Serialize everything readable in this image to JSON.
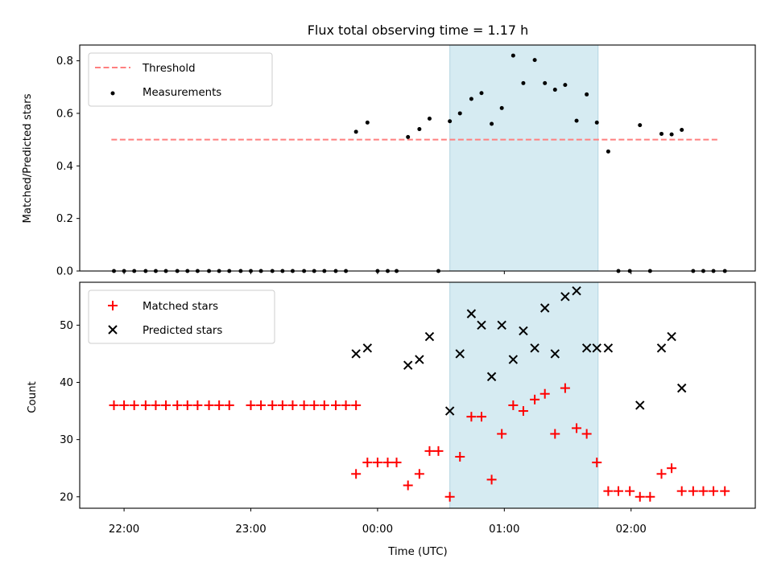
{
  "chart_data": [
    {
      "type": "scatter",
      "title": "Flux total observing time = 1.17 h",
      "xlabel": "",
      "ylabel": "Matched/Predicted stars",
      "ylim": [
        0,
        0.86
      ],
      "yticks": [
        0.0,
        0.2,
        0.4,
        0.6,
        0.8
      ],
      "ytick_labels": [
        "0.0",
        "0.2",
        "0.4",
        "0.6",
        "0.8"
      ],
      "xlim_hours": [
        -2.35,
        2.98
      ],
      "legend": {
        "placement": "top-left",
        "entries": [
          "Threshold",
          "Measurements"
        ]
      },
      "threshold": {
        "name": "Threshold",
        "value": 0.5,
        "x_range_hours": [
          -2.1,
          2.7
        ],
        "color": "#ff7f7f"
      },
      "highlight_band_hours": [
        0.57,
        1.74
      ],
      "highlight_color": "#add8e6",
      "series": [
        {
          "name": "Measurements",
          "color": "#000000",
          "x_hours": [
            -2.08,
            -2.0,
            -1.92,
            -1.83,
            -1.75,
            -1.67,
            -1.58,
            -1.5,
            -1.42,
            -1.33,
            -1.25,
            -1.17,
            -1.08,
            -1.0,
            -0.92,
            -0.83,
            -0.75,
            -0.67,
            -0.58,
            -0.5,
            -0.42,
            -0.33,
            -0.25,
            -0.17,
            -0.08,
            0.0,
            0.08,
            0.15,
            0.24,
            0.33,
            0.41,
            0.48,
            0.57,
            0.65,
            0.74,
            0.82,
            0.9,
            0.98,
            1.07,
            1.15,
            1.24,
            1.32,
            1.4,
            1.48,
            1.57,
            1.65,
            1.73,
            1.82,
            1.9,
            1.99,
            2.07,
            2.15,
            2.24,
            2.32,
            2.4,
            2.49,
            2.57,
            2.65,
            2.74
          ],
          "y": [
            0,
            0,
            0,
            0,
            0,
            0,
            0,
            0,
            0,
            0,
            0,
            0,
            0,
            0,
            0,
            0,
            0,
            0,
            0,
            0,
            0,
            0,
            0,
            0.53,
            0.565,
            0,
            0,
            0,
            0.51,
            0.54,
            0.58,
            0,
            0.57,
            0.6,
            0.655,
            0.677,
            0.56,
            0.62,
            0.82,
            0.715,
            0.803,
            0.715,
            0.69,
            0.708,
            0.572,
            0.672,
            0.565,
            0.455,
            0,
            0,
            0.555,
            0,
            0.522,
            0.52,
            0.537,
            0,
            0,
            0,
            0
          ]
        }
      ]
    },
    {
      "type": "scatter",
      "title": "",
      "xlabel": "Time (UTC)",
      "ylabel": "Count",
      "ylim": [
        18,
        57.5
      ],
      "yticks": [
        20,
        30,
        40,
        50
      ],
      "ytick_labels": [
        "20",
        "30",
        "40",
        "50"
      ],
      "xticks_hours": [
        -2,
        -1,
        0,
        1,
        2
      ],
      "xtick_labels": [
        "22:00",
        "23:00",
        "00:00",
        "01:00",
        "02:00"
      ],
      "xlim_hours": [
        -2.35,
        2.98
      ],
      "legend": {
        "placement": "top-left",
        "entries": [
          "Matched stars",
          "Predicted stars"
        ]
      },
      "highlight_band_hours": [
        0.57,
        1.74
      ],
      "highlight_color": "#add8e6",
      "series": [
        {
          "name": "Matched stars",
          "marker": "+",
          "color": "#ff0000",
          "x_hours": [
            -2.08,
            -2.0,
            -1.92,
            -1.83,
            -1.75,
            -1.67,
            -1.58,
            -1.5,
            -1.42,
            -1.33,
            -1.25,
            -1.17,
            -1.0,
            -0.92,
            -0.83,
            -0.75,
            -0.67,
            -0.58,
            -0.5,
            -0.42,
            -0.33,
            -0.25,
            -0.17,
            -0.17,
            -0.08,
            0.0,
            0.08,
            0.15,
            0.24,
            0.33,
            0.41,
            0.48,
            0.57,
            0.65,
            0.74,
            0.82,
            0.9,
            0.98,
            1.07,
            1.15,
            1.24,
            1.32,
            1.4,
            1.48,
            1.57,
            1.65,
            1.73,
            1.82,
            1.9,
            1.99,
            2.07,
            2.15,
            2.24,
            2.32,
            2.4,
            2.49,
            2.57,
            2.65,
            2.74
          ],
          "y": [
            36,
            36,
            36,
            36,
            36,
            36,
            36,
            36,
            36,
            36,
            36,
            36,
            36,
            36,
            36,
            36,
            36,
            36,
            36,
            36,
            36,
            36,
            36,
            24,
            26,
            26,
            26,
            26,
            22,
            24,
            28,
            28,
            20,
            27,
            34,
            34,
            23,
            31,
            36,
            35,
            37,
            38,
            31,
            39,
            32,
            31,
            26,
            21,
            21,
            21,
            20,
            20,
            24,
            25,
            21,
            21,
            21,
            21,
            21
          ]
        },
        {
          "name": "Predicted stars",
          "marker": "x",
          "color": "#000000",
          "x_hours": [
            -0.17,
            -0.08,
            0.24,
            0.33,
            0.41,
            0.57,
            0.65,
            0.74,
            0.82,
            0.9,
            0.98,
            1.07,
            1.15,
            1.24,
            1.32,
            1.4,
            1.48,
            1.57,
            1.65,
            1.73,
            1.82,
            2.07,
            2.24,
            2.32,
            2.4
          ],
          "y": [
            45,
            46,
            43,
            44,
            48,
            35,
            45,
            52,
            50,
            41,
            50,
            44,
            49,
            46,
            53,
            45,
            55,
            56,
            46,
            46,
            46,
            36,
            46,
            48,
            39
          ]
        }
      ]
    }
  ]
}
